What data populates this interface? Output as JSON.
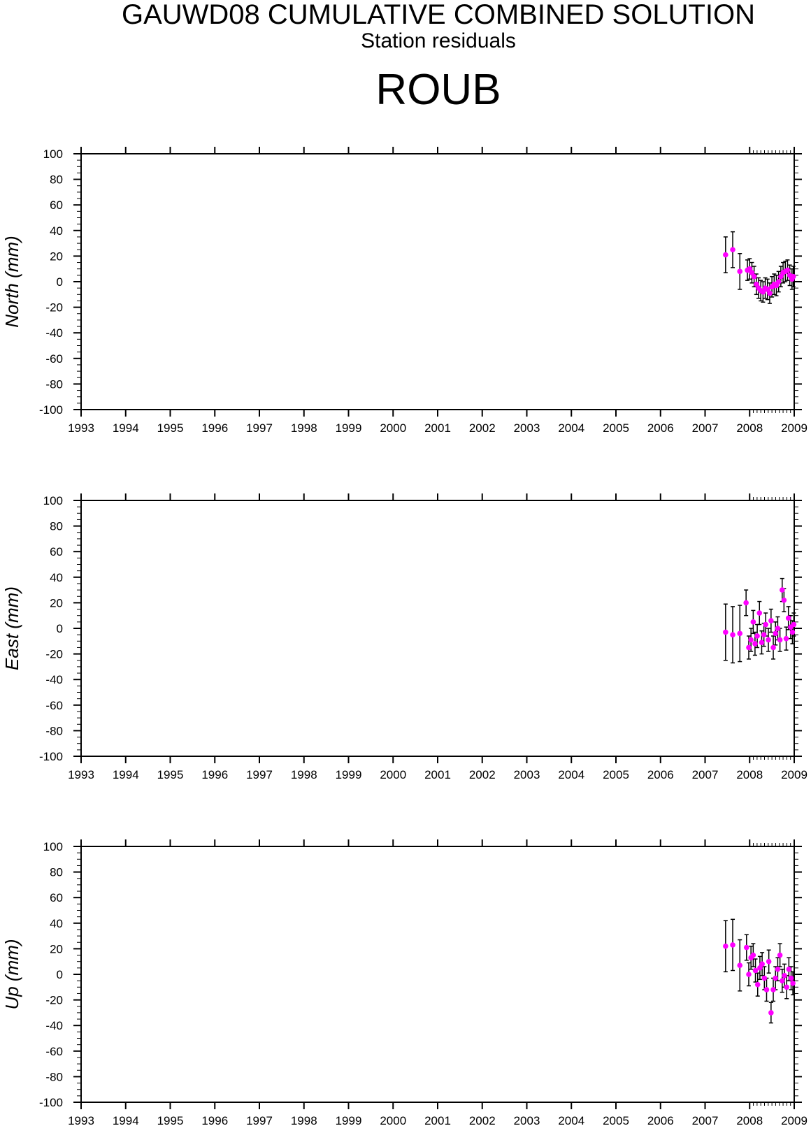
{
  "header": {
    "title": "GAUWD08 CUMULATIVE COMBINED SOLUTION",
    "subtitle": "Station residuals",
    "station": "ROUB"
  },
  "colors": {
    "marker": "#ff00ff",
    "errorbar": "#000000",
    "axis": "#000000"
  },
  "chart_data": [
    {
      "type": "scatter",
      "ylabel": "North (mm)",
      "xlim": [
        1993,
        2009
      ],
      "ylim": [
        -100,
        100
      ],
      "x_ticks": [
        "1993",
        "1994",
        "1995",
        "1996",
        "1997",
        "1998",
        "1999",
        "2000",
        "2001",
        "2002",
        "2003",
        "2004",
        "2005",
        "2006",
        "2007",
        "2008",
        "2009"
      ],
      "y_ticks": [
        "-100",
        "-80",
        "-60",
        "-40",
        "-20",
        "0",
        "20",
        "40",
        "60",
        "80",
        "100"
      ],
      "series": [
        {
          "x": [
            2007.46,
            2007.62,
            2007.78,
            2007.95,
            2008.0,
            2008.05,
            2008.1,
            2008.15,
            2008.2,
            2008.25,
            2008.3,
            2008.35,
            2008.4,
            2008.45,
            2008.5,
            2008.55,
            2008.6,
            2008.65,
            2008.7,
            2008.75,
            2008.8,
            2008.85,
            2008.9,
            2008.95,
            2008.98
          ],
          "y": [
            21,
            25,
            8,
            9,
            10,
            7,
            4,
            -2,
            -5,
            -7,
            -8,
            -5,
            -6,
            -9,
            -4,
            -2,
            -3,
            0,
            4,
            7,
            8,
            9,
            5,
            2,
            4
          ],
          "err": [
            14,
            14,
            14,
            8,
            8,
            8,
            8,
            8,
            8,
            8,
            8,
            8,
            8,
            8,
            8,
            8,
            8,
            8,
            8,
            8,
            8,
            8,
            8,
            8,
            8
          ]
        }
      ]
    },
    {
      "type": "scatter",
      "ylabel": "East (mm)",
      "xlim": [
        1993,
        2009
      ],
      "ylim": [
        -100,
        100
      ],
      "x_ticks": [
        "1993",
        "1994",
        "1995",
        "1996",
        "1997",
        "1998",
        "1999",
        "2000",
        "2001",
        "2002",
        "2003",
        "2004",
        "2005",
        "2006",
        "2007",
        "2008",
        "2009"
      ],
      "y_ticks": [
        "-100",
        "-80",
        "-60",
        "-40",
        "-20",
        "0",
        "20",
        "40",
        "60",
        "80",
        "100"
      ],
      "series": [
        {
          "x": [
            2007.46,
            2007.62,
            2007.78,
            2007.92,
            2007.98,
            2008.03,
            2008.08,
            2008.12,
            2008.17,
            2008.22,
            2008.27,
            2008.32,
            2008.36,
            2008.42,
            2008.48,
            2008.53,
            2008.58,
            2008.63,
            2008.68,
            2008.73,
            2008.77,
            2008.82,
            2008.87,
            2008.92,
            2008.96,
            2008.99
          ],
          "y": [
            -3,
            -5,
            -4,
            20,
            -15,
            -9,
            5,
            -12,
            -6,
            12,
            -11,
            -5,
            3,
            -9,
            6,
            -15,
            -4,
            0,
            -9,
            30,
            22,
            -8,
            8,
            1,
            -3,
            3
          ],
          "err": [
            22,
            22,
            22,
            10,
            9,
            9,
            9,
            9,
            9,
            9,
            9,
            9,
            9,
            9,
            9,
            9,
            9,
            9,
            9,
            9,
            9,
            9,
            9,
            9,
            9,
            9
          ]
        }
      ]
    },
    {
      "type": "scatter",
      "ylabel": "Up (mm)",
      "xlim": [
        1993,
        2009
      ],
      "ylim": [
        -100,
        100
      ],
      "x_ticks": [
        "1993",
        "1994",
        "1995",
        "1996",
        "1997",
        "1998",
        "1999",
        "2000",
        "2001",
        "2002",
        "2003",
        "2004",
        "2005",
        "2006",
        "2007",
        "2008",
        "2009"
      ],
      "y_ticks": [
        "-100",
        "-80",
        "-60",
        "-40",
        "-20",
        "0",
        "20",
        "40",
        "60",
        "80",
        "100"
      ],
      "series": [
        {
          "x": [
            2007.46,
            2007.62,
            2007.78,
            2007.93,
            2007.98,
            2008.03,
            2008.08,
            2008.13,
            2008.18,
            2008.23,
            2008.28,
            2008.33,
            2008.38,
            2008.43,
            2008.48,
            2008.53,
            2008.58,
            2008.63,
            2008.68,
            2008.73,
            2008.78,
            2008.83,
            2008.88,
            2008.93,
            2008.97
          ],
          "y": [
            22,
            23,
            7,
            21,
            0,
            13,
            15,
            3,
            -8,
            5,
            8,
            -3,
            -12,
            10,
            -30,
            -12,
            -3,
            4,
            15,
            -5,
            -1,
            -10,
            4,
            -3,
            -7
          ],
          "err": [
            20,
            20,
            20,
            10,
            9,
            9,
            9,
            9,
            9,
            9,
            9,
            9,
            9,
            9,
            8,
            9,
            9,
            9,
            9,
            9,
            9,
            9,
            9,
            9,
            9
          ]
        }
      ]
    }
  ]
}
